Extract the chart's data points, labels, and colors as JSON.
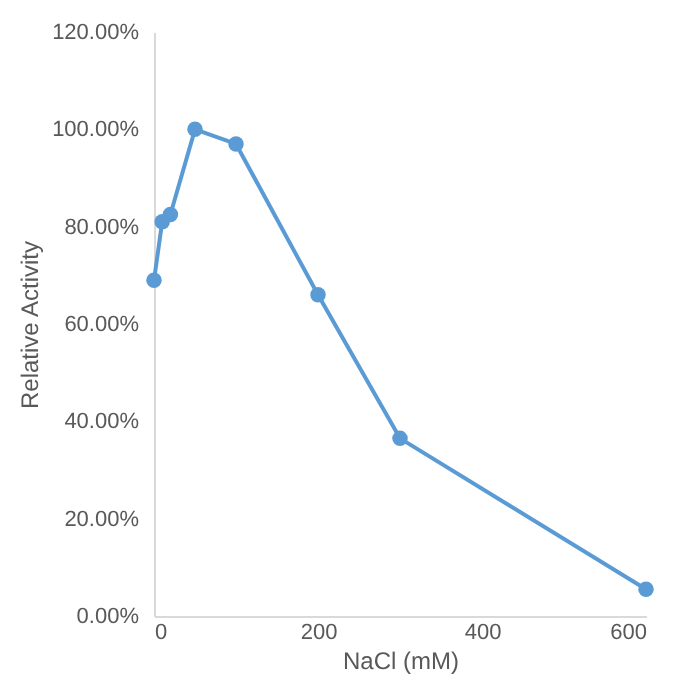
{
  "chart_data": {
    "type": "line",
    "xlabel": "NaCl (mM)",
    "ylabel": "Relative Activity",
    "x": [
      0,
      10,
      20,
      50,
      100,
      200,
      300,
      600
    ],
    "series": [
      {
        "color": "#5b9bd5",
        "values": [
          69,
          81,
          82.5,
          100,
          97,
          66,
          36.5,
          5.5
        ]
      }
    ],
    "xlim": [
      0,
      600
    ],
    "xticks": [
      0,
      200,
      400,
      600
    ],
    "ylim": [
      0,
      120
    ],
    "yticks": [
      {
        "value": 0,
        "label": "0.00%"
      },
      {
        "value": 20,
        "label": "20.00%"
      },
      {
        "value": 40,
        "label": "40.00%"
      },
      {
        "value": 60,
        "label": "60.00%"
      },
      {
        "value": 80,
        "label": "80.00%"
      },
      {
        "value": 100,
        "label": "100.00%"
      },
      {
        "value": 120,
        "label": "120.00%"
      }
    ],
    "marker": "circle",
    "line_style": "solid",
    "grid": false,
    "legend": false
  }
}
